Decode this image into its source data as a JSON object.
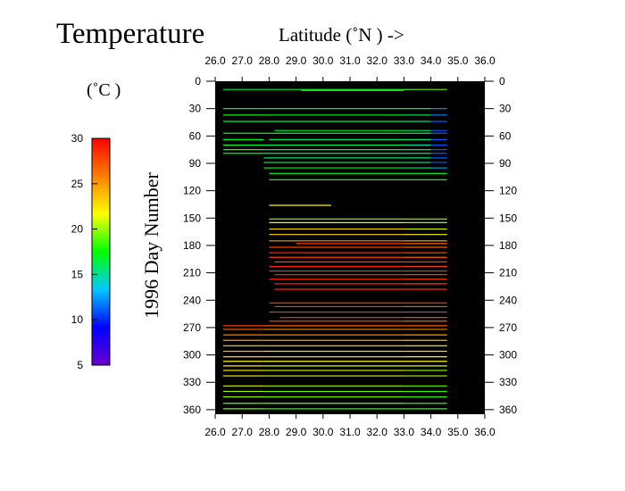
{
  "chart_data": {
    "type": "heatmap",
    "title": "Temperature",
    "xlabel": "Latitude  (˚N )  ->",
    "ylabel": "1996  Day  Number",
    "colorbar_label": "(˚C )",
    "xlim": [
      26.0,
      36.0
    ],
    "ylim": [
      0,
      365
    ],
    "y_inverted": true,
    "background": "#000000",
    "x_ticks": [
      "26.0",
      "27.0",
      "28.0",
      "29.0",
      "30.0",
      "31.0",
      "32.0",
      "33.0",
      "34.0",
      "35.0",
      "36.0"
    ],
    "y_ticks": [
      "0",
      "30",
      "60",
      "90",
      "120",
      "150",
      "180",
      "210",
      "240",
      "270",
      "300",
      "330",
      "360"
    ],
    "colorbar": {
      "range": [
        5,
        30
      ],
      "ticks": [
        "30",
        "25",
        "20",
        "15",
        "10",
        "5"
      ],
      "colors": [
        "#6a00d0",
        "#0000ff",
        "#00c8ff",
        "#00ff00",
        "#ffff00",
        "#ff8000",
        "#ff0000"
      ]
    },
    "series": [
      {
        "day": 9,
        "segments": [
          [
            26.3,
            33.0,
            17
          ],
          [
            33.0,
            34.6,
            19
          ]
        ]
      },
      {
        "day": 10,
        "segments": [
          [
            29.2,
            33.0,
            18
          ]
        ]
      },
      {
        "day": 30,
        "segments": [
          [
            26.3,
            27.8,
            17
          ],
          [
            27.8,
            33.0,
            17
          ],
          [
            33.0,
            34.0,
            17
          ],
          [
            34.0,
            34.6,
            12
          ]
        ]
      },
      {
        "day": 37,
        "segments": [
          [
            26.3,
            27.8,
            18
          ],
          [
            27.8,
            33.0,
            17
          ],
          [
            33.0,
            34.0,
            16
          ],
          [
            34.0,
            34.6,
            12
          ]
        ]
      },
      {
        "day": 44,
        "segments": [
          [
            26.3,
            32.8,
            17
          ],
          [
            32.8,
            34.0,
            16
          ],
          [
            34.0,
            34.6,
            11
          ]
        ]
      },
      {
        "day": 54,
        "segments": [
          [
            28.2,
            33.0,
            17
          ],
          [
            33.0,
            34.0,
            16
          ],
          [
            34.0,
            34.6,
            11
          ]
        ]
      },
      {
        "day": 57,
        "segments": [
          [
            26.3,
            27.8,
            17
          ],
          [
            27.8,
            33.0,
            17
          ],
          [
            33.0,
            34.0,
            16
          ],
          [
            34.0,
            34.6,
            11
          ]
        ]
      },
      {
        "day": 64,
        "segments": [
          [
            26.3,
            27.8,
            17
          ],
          [
            28.0,
            33.0,
            16
          ],
          [
            33.0,
            34.0,
            16
          ],
          [
            34.0,
            34.6,
            11
          ]
        ]
      },
      {
        "day": 70,
        "segments": [
          [
            26.3,
            27.8,
            17
          ],
          [
            27.8,
            33.0,
            16
          ],
          [
            33.0,
            34.0,
            15
          ],
          [
            34.0,
            34.6,
            11
          ]
        ]
      },
      {
        "day": 75,
        "segments": [
          [
            26.3,
            27.8,
            18
          ],
          [
            27.8,
            33.0,
            16
          ],
          [
            33.0,
            34.0,
            16
          ],
          [
            34.0,
            34.6,
            11
          ]
        ]
      },
      {
        "day": 79,
        "segments": [
          [
            26.3,
            27.8,
            17
          ],
          [
            27.8,
            33.0,
            16
          ],
          [
            33.0,
            34.0,
            16
          ],
          [
            34.0,
            34.6,
            11
          ]
        ]
      },
      {
        "day": 84,
        "segments": [
          [
            27.8,
            33.0,
            16
          ],
          [
            33.0,
            34.0,
            16
          ],
          [
            34.0,
            34.6,
            11
          ]
        ]
      },
      {
        "day": 89,
        "segments": [
          [
            27.8,
            33.0,
            17
          ],
          [
            33.0,
            34.0,
            16
          ],
          [
            34.0,
            34.6,
            11
          ]
        ]
      },
      {
        "day": 95,
        "segments": [
          [
            27.8,
            33.0,
            17
          ],
          [
            33.0,
            34.6,
            16
          ],
          [
            34.0,
            34.6,
            12
          ]
        ]
      },
      {
        "day": 101,
        "segments": [
          [
            28.0,
            33.0,
            17
          ],
          [
            33.0,
            34.6,
            17
          ]
        ]
      },
      {
        "day": 108,
        "segments": [
          [
            28.0,
            33.0,
            17
          ],
          [
            33.0,
            34.6,
            17
          ]
        ]
      },
      {
        "day": 136,
        "segments": [
          [
            28.0,
            30.3,
            22
          ]
        ]
      },
      {
        "day": 151,
        "segments": [
          [
            28.0,
            33.0,
            20
          ],
          [
            33.0,
            34.6,
            20
          ]
        ]
      },
      {
        "day": 155,
        "segments": [
          [
            28.0,
            33.0,
            21
          ],
          [
            33.0,
            34.6,
            20
          ]
        ]
      },
      {
        "day": 162,
        "segments": [
          [
            28.0,
            33.0,
            23
          ],
          [
            33.0,
            34.6,
            21
          ]
        ]
      },
      {
        "day": 168,
        "segments": [
          [
            28.0,
            33.0,
            23
          ],
          [
            33.0,
            34.6,
            22
          ]
        ]
      },
      {
        "day": 175,
        "segments": [
          [
            28.0,
            33.0,
            25
          ],
          [
            33.0,
            34.6,
            24
          ]
        ]
      },
      {
        "day": 178,
        "segments": [
          [
            29.0,
            33.0,
            28
          ],
          [
            33.0,
            34.6,
            27
          ]
        ]
      },
      {
        "day": 182,
        "segments": [
          [
            28.0,
            33.0,
            28
          ],
          [
            33.0,
            34.6,
            27
          ]
        ]
      },
      {
        "day": 188,
        "segments": [
          [
            28.0,
            33.0,
            29
          ],
          [
            33.0,
            34.6,
            28
          ]
        ]
      },
      {
        "day": 193,
        "segments": [
          [
            28.0,
            33.0,
            28
          ],
          [
            33.0,
            34.6,
            27
          ]
        ]
      },
      {
        "day": 198,
        "segments": [
          [
            28.2,
            33.0,
            28
          ],
          [
            33.0,
            34.6,
            28
          ]
        ]
      },
      {
        "day": 203,
        "segments": [
          [
            28.0,
            33.0,
            29
          ],
          [
            33.0,
            34.6,
            28
          ]
        ]
      },
      {
        "day": 208,
        "segments": [
          [
            28.0,
            33.0,
            28
          ],
          [
            33.0,
            34.6,
            28
          ]
        ]
      },
      {
        "day": 212,
        "segments": [
          [
            28.2,
            33.0,
            29
          ],
          [
            33.0,
            34.6,
            28
          ]
        ]
      },
      {
        "day": 217,
        "segments": [
          [
            28.0,
            33.0,
            29
          ],
          [
            33.0,
            34.6,
            28
          ]
        ]
      },
      {
        "day": 222,
        "segments": [
          [
            28.2,
            33.0,
            29
          ],
          [
            33.0,
            34.6,
            28
          ]
        ]
      },
      {
        "day": 228,
        "segments": [
          [
            28.2,
            33.0,
            29
          ],
          [
            33.0,
            34.6,
            29
          ]
        ]
      },
      {
        "day": 243,
        "segments": [
          [
            28.0,
            33.0,
            28
          ],
          [
            33.0,
            34.6,
            28
          ]
        ]
      },
      {
        "day": 247,
        "segments": [
          [
            28.2,
            33.0,
            28
          ],
          [
            33.0,
            34.6,
            27
          ]
        ]
      },
      {
        "day": 253,
        "segments": [
          [
            28.0,
            33.0,
            28
          ],
          [
            33.0,
            34.6,
            28
          ]
        ]
      },
      {
        "day": 259,
        "segments": [
          [
            28.4,
            33.0,
            28
          ],
          [
            33.0,
            34.6,
            27
          ]
        ]
      },
      {
        "day": 263,
        "segments": [
          [
            28.0,
            33.0,
            28
          ],
          [
            33.0,
            34.6,
            27
          ]
        ]
      },
      {
        "day": 268,
        "segments": [
          [
            26.3,
            27.8,
            28
          ],
          [
            27.8,
            33.0,
            27
          ],
          [
            33.0,
            34.6,
            27
          ]
        ]
      },
      {
        "day": 272,
        "segments": [
          [
            26.3,
            27.8,
            27
          ],
          [
            27.8,
            33.0,
            26
          ],
          [
            33.0,
            34.6,
            26
          ]
        ]
      },
      {
        "day": 278,
        "segments": [
          [
            26.3,
            27.8,
            26
          ],
          [
            27.8,
            33.0,
            26
          ],
          [
            33.0,
            34.6,
            25
          ]
        ]
      },
      {
        "day": 284,
        "segments": [
          [
            26.3,
            27.8,
            25
          ],
          [
            27.8,
            33.0,
            25
          ],
          [
            33.0,
            34.6,
            24
          ]
        ]
      },
      {
        "day": 290,
        "segments": [
          [
            26.3,
            27.8,
            24
          ],
          [
            27.8,
            33.0,
            24
          ],
          [
            33.0,
            34.6,
            23
          ]
        ]
      },
      {
        "day": 296,
        "segments": [
          [
            26.3,
            27.8,
            24
          ],
          [
            27.8,
            33.0,
            23
          ],
          [
            33.0,
            34.6,
            23
          ]
        ]
      },
      {
        "day": 302,
        "segments": [
          [
            26.3,
            27.8,
            23
          ],
          [
            27.8,
            33.0,
            23
          ],
          [
            33.0,
            34.6,
            22
          ]
        ]
      },
      {
        "day": 307,
        "segments": [
          [
            26.3,
            27.8,
            22
          ],
          [
            27.8,
            33.0,
            22
          ],
          [
            33.0,
            34.6,
            22
          ]
        ]
      },
      {
        "day": 312,
        "segments": [
          [
            26.3,
            27.8,
            22
          ],
          [
            27.8,
            33.0,
            21
          ],
          [
            33.0,
            34.6,
            21
          ]
        ]
      },
      {
        "day": 317,
        "segments": [
          [
            26.3,
            27.8,
            22
          ],
          [
            27.8,
            33.0,
            21
          ],
          [
            33.0,
            34.6,
            20
          ]
        ]
      },
      {
        "day": 323,
        "segments": [
          [
            26.3,
            27.8,
            22
          ],
          [
            27.8,
            33.0,
            21
          ],
          [
            33.0,
            34.6,
            20
          ]
        ]
      },
      {
        "day": 334,
        "segments": [
          [
            26.3,
            27.8,
            21
          ],
          [
            27.8,
            33.0,
            20
          ],
          [
            33.0,
            34.6,
            19
          ]
        ]
      },
      {
        "day": 340,
        "segments": [
          [
            26.3,
            27.8,
            20
          ],
          [
            27.8,
            33.0,
            19
          ],
          [
            33.0,
            34.6,
            18
          ]
        ]
      },
      {
        "day": 346,
        "segments": [
          [
            26.3,
            27.8,
            20
          ],
          [
            27.8,
            33.0,
            19
          ],
          [
            33.0,
            34.6,
            18
          ]
        ]
      },
      {
        "day": 353,
        "segments": [
          [
            26.3,
            27.8,
            19
          ],
          [
            27.8,
            33.0,
            19
          ],
          [
            33.0,
            34.6,
            18
          ]
        ]
      },
      {
        "day": 359,
        "segments": [
          [
            26.3,
            27.8,
            19
          ],
          [
            27.8,
            33.0,
            18
          ],
          [
            33.0,
            34.6,
            18
          ]
        ]
      }
    ]
  }
}
